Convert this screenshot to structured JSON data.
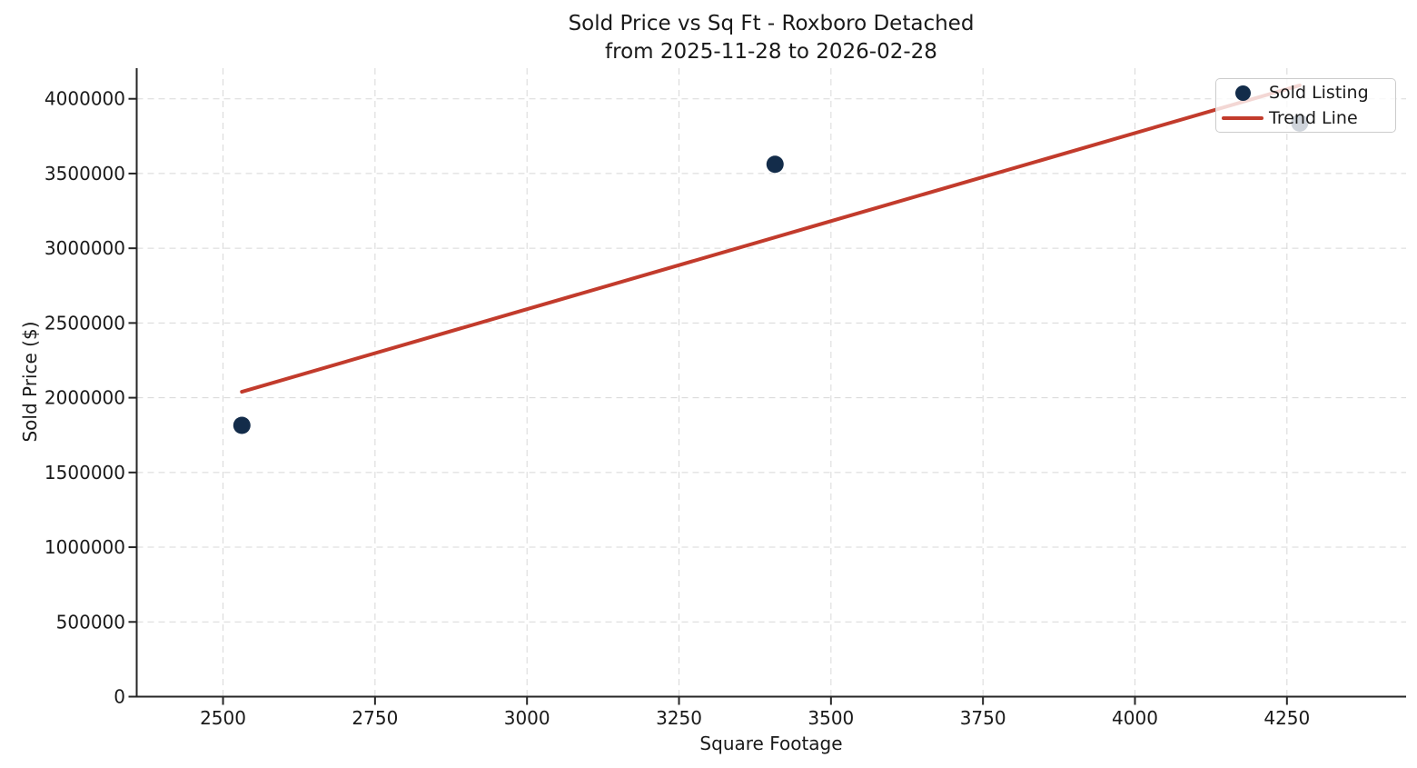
{
  "chart_data": {
    "type": "scatter",
    "title": "Sold Price vs Sq Ft - Roxboro Detached",
    "subtitle": "from 2025-11-28 to 2026-02-28",
    "xlabel": "Square Footage",
    "ylabel": "Sold Price ($)",
    "xlim": [
      2358,
      4446
    ],
    "ylim": [
      0,
      4205000
    ],
    "x_ticks": [
      2500,
      2750,
      3000,
      3250,
      3500,
      3750,
      4000,
      4250
    ],
    "y_ticks": [
      0,
      500000,
      1000000,
      1500000,
      2000000,
      2500000,
      3000000,
      3500000,
      4000000
    ],
    "grid": true,
    "grid_style": "dashed",
    "legend_position": "upper right",
    "series": [
      {
        "name": "Sold Listing",
        "kind": "scatter",
        "color": "#132c4a",
        "points": [
          {
            "sqft": 2531,
            "price": 1815000
          },
          {
            "sqft": 3408,
            "price": 3562000
          },
          {
            "sqft": 4271,
            "price": 3838000
          }
        ]
      },
      {
        "name": "Trend Line",
        "kind": "line",
        "color": "#c23b2c",
        "points": [
          {
            "sqft": 2531,
            "price": 2040000
          },
          {
            "sqft": 4271,
            "price": 4090000
          }
        ]
      }
    ],
    "colors": {
      "dot": "#132c4a",
      "trend": "#c23b2c",
      "grid": "#d8d8d8",
      "spine": "#262626",
      "text": "#1a1a1a",
      "legend_border": "#cccccc"
    }
  },
  "legend": {
    "items": [
      {
        "label": "Sold Listing",
        "marker": "dot"
      },
      {
        "label": "Trend Line",
        "marker": "line"
      }
    ]
  }
}
